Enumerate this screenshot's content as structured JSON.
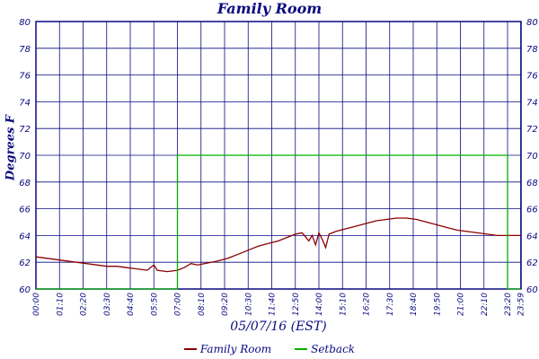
{
  "chart_data": {
    "type": "line",
    "title": "Family Room",
    "xlabel": "05/07/16 (EST)",
    "ylabel": "Degrees F",
    "ylim": [
      60,
      80
    ],
    "yticks": [
      60,
      62,
      64,
      66,
      68,
      70,
      72,
      74,
      76,
      78,
      80
    ],
    "x_range_minutes": [
      0,
      1440
    ],
    "x_ticks": [
      "00:00",
      "01:10",
      "02:20",
      "03:30",
      "04:40",
      "05:50",
      "07:00",
      "08:10",
      "09:20",
      "10:30",
      "11:40",
      "12:50",
      "14:00",
      "15:10",
      "16:20",
      "17:30",
      "18:40",
      "19:50",
      "21:00",
      "22:10",
      "23:20",
      "23:59"
    ],
    "grid": true,
    "legend_position": "bottom-center",
    "series": [
      {
        "name": "Family Room",
        "color": "#8b0000",
        "points": [
          [
            "00:00",
            62.4
          ],
          [
            "00:30",
            62.3
          ],
          [
            "01:00",
            62.2
          ],
          [
            "01:30",
            62.1
          ],
          [
            "02:00",
            62.0
          ],
          [
            "02:30",
            61.9
          ],
          [
            "03:00",
            61.8
          ],
          [
            "03:30",
            61.7
          ],
          [
            "04:00",
            61.7
          ],
          [
            "04:30",
            61.6
          ],
          [
            "05:00",
            61.5
          ],
          [
            "05:30",
            61.4
          ],
          [
            "05:50",
            61.8
          ],
          [
            "06:00",
            61.4
          ],
          [
            "06:30",
            61.3
          ],
          [
            "07:00",
            61.4
          ],
          [
            "07:20",
            61.6
          ],
          [
            "07:40",
            61.9
          ],
          [
            "08:00",
            61.8
          ],
          [
            "08:20",
            61.9
          ],
          [
            "08:40",
            62.0
          ],
          [
            "09:00",
            62.1
          ],
          [
            "09:30",
            62.3
          ],
          [
            "10:00",
            62.6
          ],
          [
            "10:30",
            62.9
          ],
          [
            "11:00",
            63.2
          ],
          [
            "11:30",
            63.4
          ],
          [
            "12:00",
            63.6
          ],
          [
            "12:30",
            63.9
          ],
          [
            "12:50",
            64.1
          ],
          [
            "13:10",
            64.2
          ],
          [
            "13:30",
            63.6
          ],
          [
            "13:40",
            64.0
          ],
          [
            "13:50",
            63.3
          ],
          [
            "14:00",
            64.2
          ],
          [
            "14:10",
            63.7
          ],
          [
            "14:20",
            63.1
          ],
          [
            "14:30",
            64.1
          ],
          [
            "14:50",
            64.3
          ],
          [
            "15:20",
            64.5
          ],
          [
            "15:50",
            64.7
          ],
          [
            "16:20",
            64.9
          ],
          [
            "16:50",
            65.1
          ],
          [
            "17:20",
            65.2
          ],
          [
            "17:50",
            65.3
          ],
          [
            "18:20",
            65.3
          ],
          [
            "18:50",
            65.2
          ],
          [
            "19:20",
            65.0
          ],
          [
            "19:50",
            64.8
          ],
          [
            "20:20",
            64.6
          ],
          [
            "20:50",
            64.4
          ],
          [
            "21:20",
            64.3
          ],
          [
            "21:50",
            64.2
          ],
          [
            "22:20",
            64.1
          ],
          [
            "22:50",
            64.0
          ],
          [
            "23:20",
            64.0
          ],
          [
            "23:59",
            64.0
          ]
        ]
      },
      {
        "name": "Setback",
        "color": "#00b000",
        "points": [
          [
            "00:00",
            60.0
          ],
          [
            "07:00",
            60.0
          ],
          [
            "07:00",
            70.0
          ],
          [
            "23:20",
            70.0
          ],
          [
            "23:20",
            60.0
          ],
          [
            "23:59",
            60.0
          ]
        ]
      }
    ]
  }
}
